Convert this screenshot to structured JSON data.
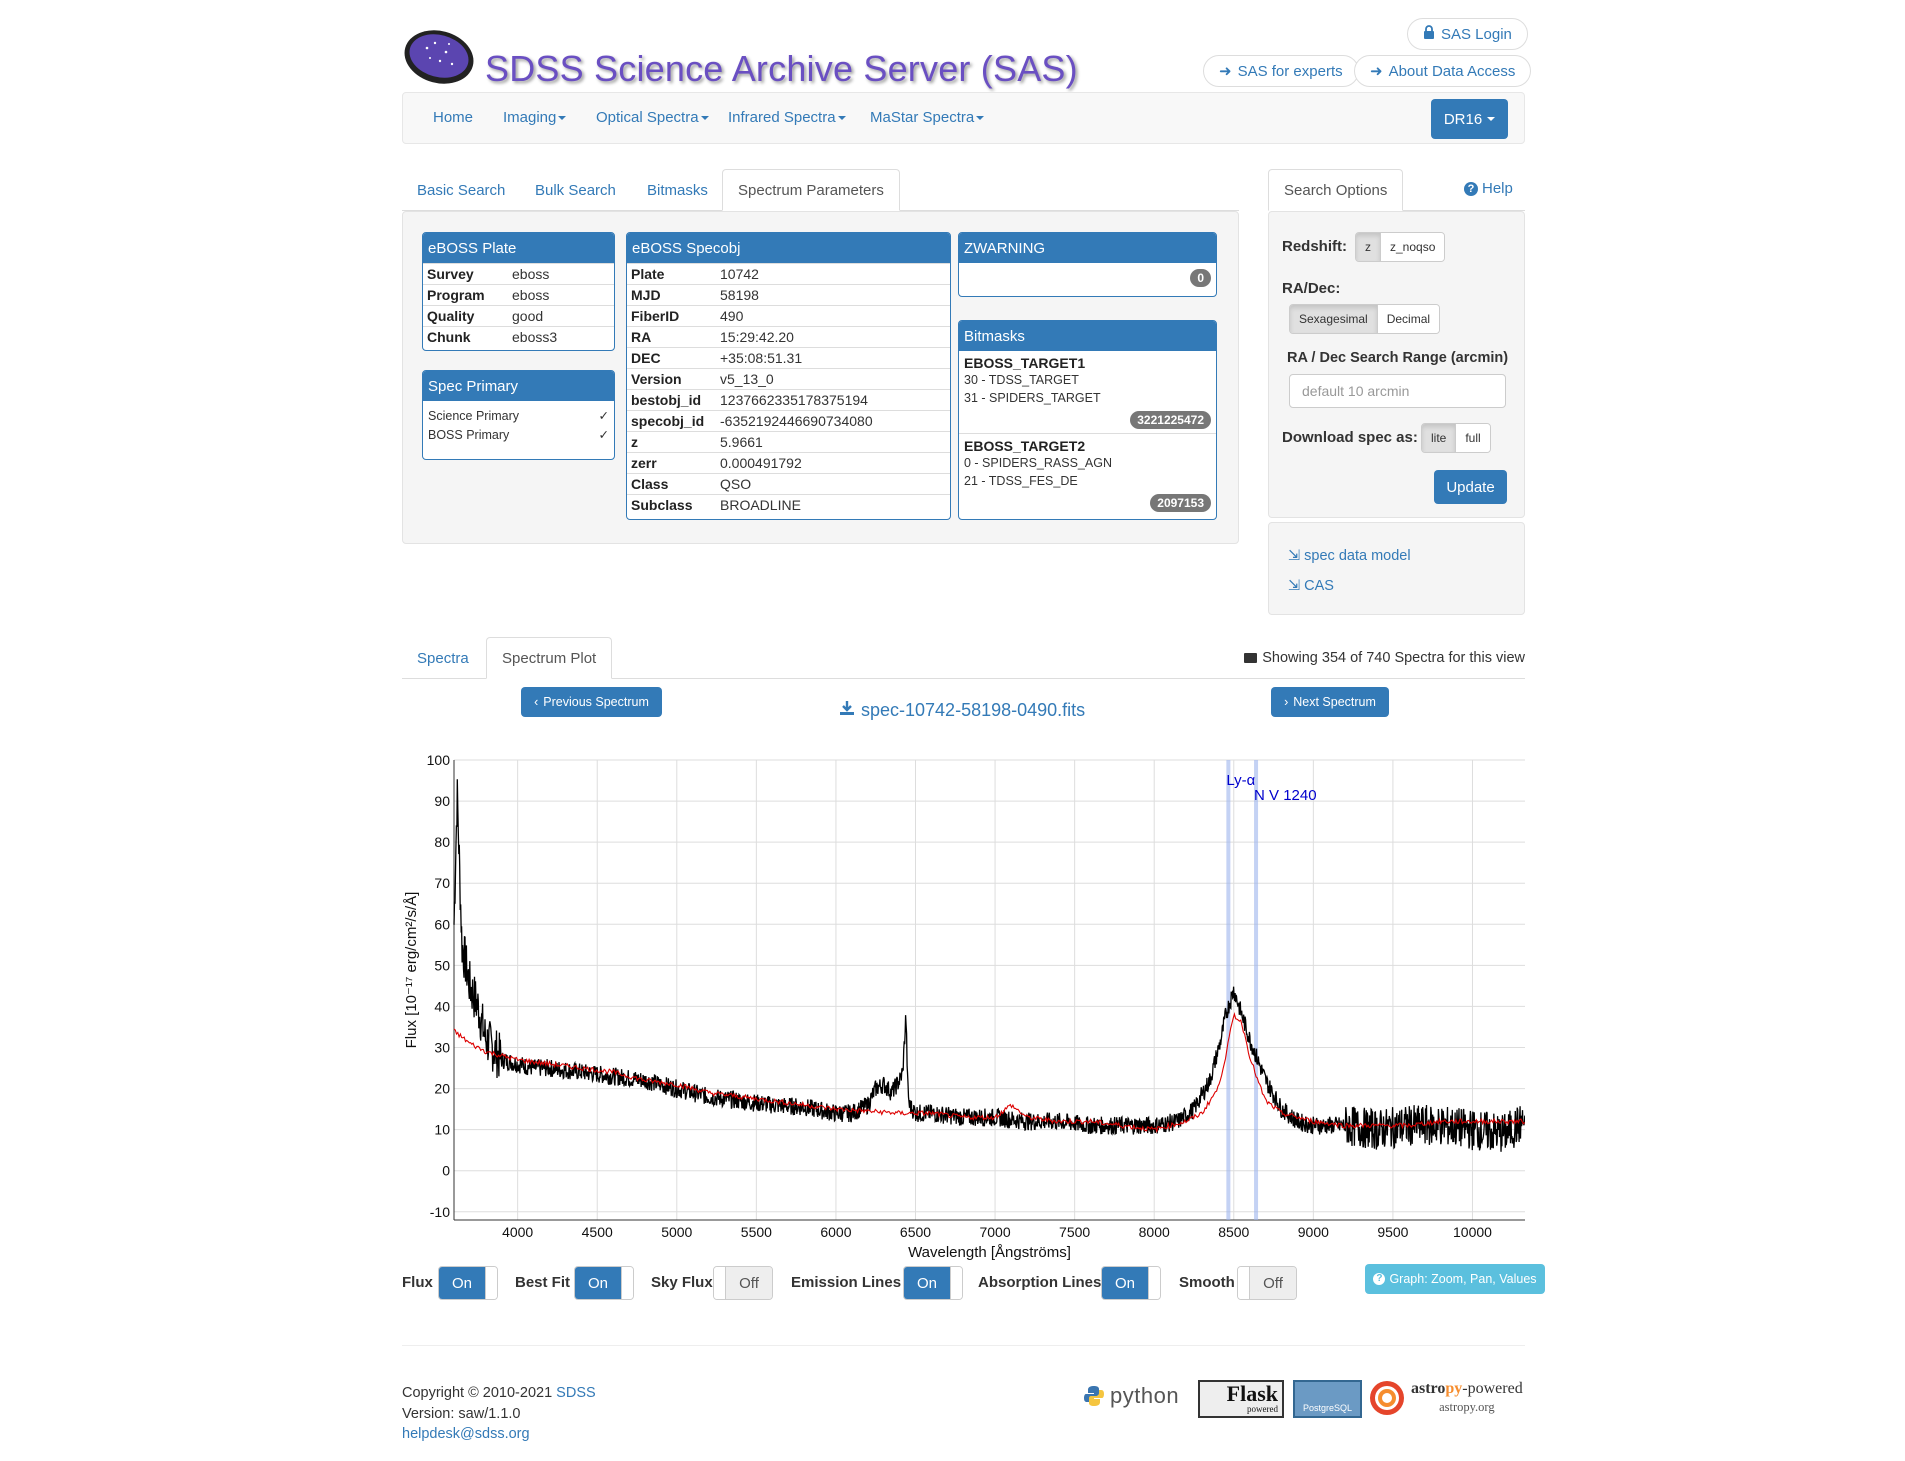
{
  "header": {
    "title": "SDSS Science Archive Server (SAS)",
    "login": "SAS Login",
    "experts": "SAS for experts",
    "about": "About Data Access"
  },
  "nav": {
    "items": [
      "Home",
      "Imaging",
      "Optical Spectra",
      "Infrared Spectra",
      "MaStar Spectra"
    ],
    "release": "DR16"
  },
  "search_tabs": [
    "Basic Search",
    "Bulk Search",
    "Bitmasks",
    "Spectrum Parameters"
  ],
  "plate_panel": {
    "title": "eBOSS Plate",
    "rows": [
      [
        "Survey",
        "eboss"
      ],
      [
        "Program",
        "eboss"
      ],
      [
        "Quality",
        "good"
      ],
      [
        "Chunk",
        "eboss3"
      ]
    ]
  },
  "spec_primary": {
    "title": "Spec Primary",
    "rows": [
      [
        "Science Primary",
        "✓"
      ],
      [
        "BOSS Primary",
        "✓"
      ]
    ]
  },
  "specobj_panel": {
    "title": "eBOSS Specobj",
    "rows": [
      [
        "Plate",
        "10742"
      ],
      [
        "MJD",
        "58198"
      ],
      [
        "FiberID",
        "490"
      ],
      [
        "RA",
        "15:29:42.20"
      ],
      [
        "DEC",
        "+35:08:51.31"
      ],
      [
        "Version",
        "v5_13_0"
      ],
      [
        "bestobj_id",
        "1237662335178375194"
      ],
      [
        "specobj_id",
        "-6352192446690734080"
      ],
      [
        "z",
        "5.9661"
      ],
      [
        "zerr",
        "0.000491792"
      ],
      [
        "Class",
        "QSO"
      ],
      [
        "Subclass",
        "BROADLINE"
      ]
    ]
  },
  "zwarning": {
    "title": "ZWARNING",
    "value": "0"
  },
  "bitmasks": {
    "title": "Bitmasks",
    "t1_title": "EBOSS_TARGET1",
    "t1_lines": [
      "30 - TDSS_TARGET",
      "31 - SPIDERS_TARGET"
    ],
    "t1_value": "3221225472",
    "t2_title": "EBOSS_TARGET2",
    "t2_lines": [
      "0 - SPIDERS_RASS_AGN",
      "21 - TDSS_FES_DE"
    ],
    "t2_value": "2097153"
  },
  "search_options": {
    "tab": "Search Options",
    "help": "Help",
    "redshift_label": "Redshift:",
    "redshift_opts": [
      "z",
      "z_noqso"
    ],
    "radec_label": "RA/Dec:",
    "radec_opts": [
      "Sexagesimal",
      "Decimal"
    ],
    "range_label": "RA / Dec Search Range (arcmin)",
    "range_placeholder": "default 10 arcmin",
    "download_label": "Download spec as:",
    "download_opts": [
      "lite",
      "full"
    ],
    "update": "Update"
  },
  "links": {
    "datamodel": "spec data model",
    "cas": "CAS"
  },
  "plot_tabs": [
    "Spectra",
    "Spectrum Plot"
  ],
  "showing": "Showing 354 of 740 Spectra for this view",
  "prev": "Previous Spectrum",
  "next": "Next Spectrum",
  "filename": "spec-10742-58198-0490.fits",
  "toggles": [
    {
      "label": "Flux",
      "state": "On"
    },
    {
      "label": "Best Fit",
      "state": "On"
    },
    {
      "label": "Sky Flux",
      "state": "Off"
    },
    {
      "label": "Emission Lines",
      "state": "On"
    },
    {
      "label": "Absorption Lines",
      "state": "On"
    },
    {
      "label": "Smooth",
      "state": "Off"
    }
  ],
  "graph_help": "Graph: Zoom, Pan, Values",
  "footer": {
    "copyright": "Copyright © 2010-2021",
    "sdss": "SDSS",
    "version": "Version: saw/1.1.0",
    "email": "helpdesk@sdss.org",
    "logos": {
      "python": "python",
      "flask": "Flask",
      "flask_sub": "powered",
      "postgres": "PostgreSQL",
      "astropy_a": "astro",
      "astropy_b": "py",
      "astropy_c": "-powered",
      "astropy_url": "astropy.org"
    }
  },
  "colors": {
    "flux": "#000000",
    "bestfit": "#dd0000",
    "lines": "#0000cc",
    "accent": "#337ab7"
  },
  "chart_data": {
    "type": "line",
    "xlabel": "Wavelength [Ångströms]",
    "ylabel": "Flux [10^-17 erg/cm^2/s/Å]",
    "xlim": [
      3600,
      10330
    ],
    "ylim": [
      -12,
      100
    ],
    "xticks": [
      4000,
      4500,
      5000,
      5500,
      6000,
      6500,
      7000,
      7500,
      8000,
      8500,
      9000,
      9500,
      10000
    ],
    "yticks": [
      -10,
      0,
      10,
      20,
      30,
      40,
      50,
      60,
      70,
      80,
      90,
      100
    ],
    "grid": true,
    "lines": [
      {
        "name": "Ly-α",
        "x": 8466
      },
      {
        "name": "N V 1240",
        "x": 8640
      }
    ],
    "series": [
      {
        "name": "Flux",
        "x": [
          3600,
          3620,
          3650,
          3700,
          3750,
          3800,
          3900,
          4000,
          4100,
          4200,
          4400,
          4600,
          4800,
          5000,
          5200,
          5400,
          5600,
          5800,
          6000,
          6100,
          6200,
          6250,
          6300,
          6350,
          6400,
          6420,
          6440,
          6450,
          6460,
          6500,
          6600,
          6800,
          7000,
          7200,
          7400,
          7600,
          7800,
          8000,
          8150,
          8250,
          8350,
          8420,
          8450,
          8500,
          8550,
          8600,
          8650,
          8700,
          8800,
          8900,
          9000,
          9200,
          9400,
          9600,
          9800,
          10000,
          10200,
          10330
        ],
        "y": [
          60,
          92,
          55,
          45,
          40,
          32,
          27,
          26,
          25,
          25,
          24,
          23,
          22,
          20,
          18,
          17,
          16,
          15.5,
          14,
          14,
          16,
          20,
          21,
          19,
          22,
          24,
          38,
          22,
          16,
          14,
          14,
          13,
          13,
          12,
          12,
          11,
          11,
          11,
          12,
          15,
          22,
          32,
          38,
          44,
          38,
          32,
          27,
          22,
          15,
          12,
          11,
          11,
          10,
          11,
          11,
          10,
          9,
          12
        ]
      },
      {
        "name": "Best Fit",
        "x": [
          3600,
          3700,
          3800,
          3900,
          4000,
          4200,
          4400,
          4600,
          4800,
          5000,
          5200,
          5400,
          5600,
          5800,
          6000,
          6200,
          6400,
          6600,
          6800,
          7000,
          7100,
          7200,
          7400,
          7600,
          7800,
          8000,
          8200,
          8300,
          8400,
          8450,
          8500,
          8550,
          8600,
          8650,
          8700,
          8800,
          9000,
          9200,
          9400,
          9600,
          9800,
          10000,
          10200,
          10330
        ],
        "y": [
          34,
          31,
          29,
          28,
          27,
          26,
          25,
          24,
          22,
          21,
          19,
          18,
          17,
          16,
          15,
          14.5,
          14,
          14,
          13,
          13,
          16,
          13,
          12,
          12,
          11,
          10,
          12,
          14,
          20,
          28,
          38,
          36,
          28,
          22,
          17,
          14,
          12,
          11,
          11,
          11,
          12,
          12,
          12,
          12
        ]
      }
    ]
  }
}
